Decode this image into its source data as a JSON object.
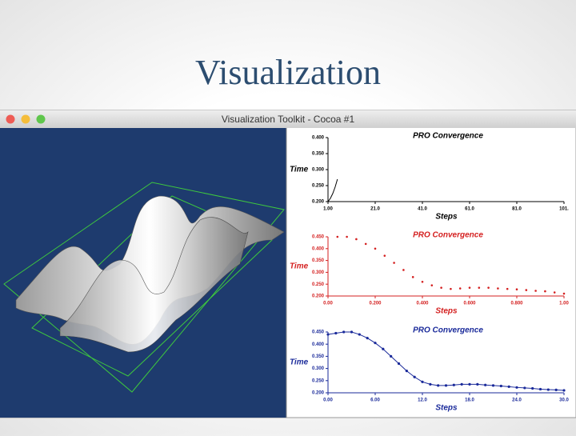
{
  "slide_title": "Visualization",
  "window_title": "Visualization Toolkit - Cocoa #1",
  "chart_data": [
    {
      "type": "line",
      "title": "PRO Convergence",
      "ylabel": "Time",
      "xlabel": "Steps",
      "color": "#000000",
      "x": [
        1,
        2,
        3,
        4,
        5
      ],
      "values": [
        0.2,
        0.21,
        0.225,
        0.245,
        0.27
      ],
      "xlim": [
        1,
        101
      ],
      "ylim": [
        0.2,
        0.4
      ],
      "xticks": [
        {
          "value": 1,
          "label": "1.00"
        },
        {
          "value": 21,
          "label": "21.0"
        },
        {
          "value": 41,
          "label": "41.0"
        },
        {
          "value": 61,
          "label": "61.0"
        },
        {
          "value": 81,
          "label": "81.0"
        },
        {
          "value": 101,
          "label": "101."
        }
      ],
      "yticks": [
        {
          "value": 0.2,
          "label": "0.200"
        },
        {
          "value": 0.25,
          "label": "0.250"
        },
        {
          "value": 0.3,
          "label": "0.300"
        },
        {
          "value": 0.35,
          "label": "0.350"
        },
        {
          "value": 0.4,
          "label": "0.400"
        }
      ]
    },
    {
      "type": "scatter",
      "title": "PRO Convergence",
      "ylabel": "Time",
      "xlabel": "Steps",
      "color": "#d42020",
      "x": [
        0.04,
        0.08,
        0.12,
        0.16,
        0.2,
        0.24,
        0.28,
        0.32,
        0.36,
        0.4,
        0.44,
        0.48,
        0.52,
        0.56,
        0.6,
        0.64,
        0.68,
        0.72,
        0.76,
        0.8,
        0.84,
        0.88,
        0.92,
        0.96,
        1.0
      ],
      "values": [
        0.45,
        0.45,
        0.44,
        0.42,
        0.4,
        0.37,
        0.34,
        0.31,
        0.28,
        0.26,
        0.245,
        0.235,
        0.23,
        0.232,
        0.235,
        0.235,
        0.235,
        0.232,
        0.23,
        0.228,
        0.225,
        0.222,
        0.22,
        0.215,
        0.21
      ],
      "xlim": [
        0,
        1
      ],
      "ylim": [
        0.2,
        0.45
      ],
      "xticks": [
        {
          "value": 0,
          "label": "0.00"
        },
        {
          "value": 0.2,
          "label": "0.200"
        },
        {
          "value": 0.4,
          "label": "0.400"
        },
        {
          "value": 0.6,
          "label": "0.600"
        },
        {
          "value": 0.8,
          "label": "0.800"
        },
        {
          "value": 1,
          "label": "1.00"
        }
      ],
      "yticks": [
        {
          "value": 0.2,
          "label": "0.200"
        },
        {
          "value": 0.25,
          "label": "0.250"
        },
        {
          "value": 0.3,
          "label": "0.300"
        },
        {
          "value": 0.35,
          "label": "0.350"
        },
        {
          "value": 0.4,
          "label": "0.400"
        },
        {
          "value": 0.45,
          "label": "0.450"
        }
      ]
    },
    {
      "type": "line",
      "markers": true,
      "title": "PRO Convergence",
      "ylabel": "Time",
      "xlabel": "Steps",
      "color": "#1a2a9a",
      "x": [
        0,
        1,
        2,
        3,
        4,
        5,
        6,
        7,
        8,
        9,
        10,
        11,
        12,
        13,
        14,
        15,
        16,
        17,
        18,
        19,
        20,
        21,
        22,
        23,
        24,
        25,
        26,
        27,
        28,
        29,
        30
      ],
      "values": [
        0.44,
        0.445,
        0.45,
        0.45,
        0.44,
        0.425,
        0.405,
        0.38,
        0.35,
        0.32,
        0.29,
        0.265,
        0.245,
        0.235,
        0.23,
        0.23,
        0.232,
        0.235,
        0.235,
        0.235,
        0.232,
        0.23,
        0.228,
        0.225,
        0.222,
        0.22,
        0.218,
        0.215,
        0.213,
        0.212,
        0.21
      ],
      "xlim": [
        0,
        30
      ],
      "ylim": [
        0.2,
        0.45
      ],
      "xticks": [
        {
          "value": 0,
          "label": "0.00"
        },
        {
          "value": 6,
          "label": "6.00"
        },
        {
          "value": 12,
          "label": "12.0"
        },
        {
          "value": 18,
          "label": "18.0"
        },
        {
          "value": 24,
          "label": "24.0"
        },
        {
          "value": 30,
          "label": "30.0"
        }
      ],
      "yticks": [
        {
          "value": 0.2,
          "label": "0.200"
        },
        {
          "value": 0.25,
          "label": "0.250"
        },
        {
          "value": 0.3,
          "label": "0.300"
        },
        {
          "value": 0.35,
          "label": "0.350"
        },
        {
          "value": 0.4,
          "label": "0.400"
        },
        {
          "value": 0.45,
          "label": "0.450"
        }
      ]
    }
  ]
}
